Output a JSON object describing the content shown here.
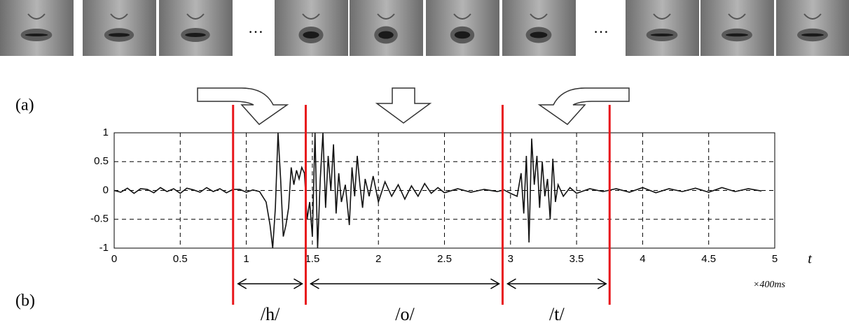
{
  "panel_labels": [
    "(a)",
    "(b)"
  ],
  "ellipsis": [
    "…",
    "…"
  ],
  "chart_data": {
    "type": "line",
    "x_label": "t",
    "x_unit": "×400ms",
    "xlim": [
      0,
      5
    ],
    "ylim": [
      -1,
      1
    ],
    "xticks": [
      0,
      0.5,
      1,
      1.5,
      2,
      2.5,
      3,
      3.5,
      4,
      4.5,
      5
    ],
    "yticks": [
      1,
      0.5,
      0,
      -0.5,
      -1
    ],
    "grid": true,
    "color": "#111111",
    "markers": [
      0.9,
      1.45,
      2.94,
      3.75
    ],
    "marker_color": "#e8161b",
    "phonemes": [
      "/h/",
      "/o/",
      "/t/"
    ],
    "x": [
      0,
      0.05,
      0.1,
      0.15,
      0.2,
      0.25,
      0.3,
      0.35,
      0.4,
      0.45,
      0.5,
      0.55,
      0.6,
      0.65,
      0.7,
      0.75,
      0.8,
      0.85,
      0.9,
      0.95,
      1.0,
      1.05,
      1.1,
      1.15,
      1.18,
      1.2,
      1.22,
      1.24,
      1.26,
      1.28,
      1.3,
      1.32,
      1.34,
      1.36,
      1.38,
      1.4,
      1.42,
      1.44,
      1.46,
      1.48,
      1.5,
      1.52,
      1.54,
      1.56,
      1.58,
      1.6,
      1.62,
      1.64,
      1.66,
      1.68,
      1.7,
      1.72,
      1.75,
      1.78,
      1.8,
      1.82,
      1.84,
      1.86,
      1.88,
      1.9,
      1.93,
      1.96,
      2.0,
      2.05,
      2.1,
      2.15,
      2.2,
      2.25,
      2.3,
      2.35,
      2.4,
      2.45,
      2.5,
      2.6,
      2.7,
      2.8,
      2.9,
      2.95,
      3.0,
      3.05,
      3.08,
      3.1,
      3.12,
      3.14,
      3.16,
      3.18,
      3.2,
      3.22,
      3.24,
      3.26,
      3.28,
      3.3,
      3.32,
      3.34,
      3.36,
      3.4,
      3.45,
      3.5,
      3.6,
      3.7,
      3.8,
      3.9,
      4.0,
      4.1,
      4.2,
      4.3,
      4.4,
      4.5,
      4.6,
      4.7,
      4.8,
      4.9
    ],
    "values": [
      0,
      -0.03,
      0.04,
      -0.05,
      0.03,
      0.02,
      -0.04,
      0.05,
      -0.02,
      0.03,
      -0.05,
      0.04,
      0.01,
      -0.03,
      0.05,
      -0.02,
      0.03,
      -0.04,
      0.02,
      0.02,
      -0.03,
      0.01,
      -0.02,
      -0.2,
      -0.6,
      -1,
      -0.3,
      1,
      0.2,
      -0.8,
      -0.6,
      -0.3,
      0.4,
      0.1,
      0.35,
      0.2,
      0.4,
      0.3,
      -0.5,
      -0.2,
      -0.8,
      1,
      -1,
      0.2,
      1,
      -0.3,
      0.6,
      0,
      0.8,
      -0.4,
      0.3,
      -0.2,
      0.1,
      -0.6,
      0.4,
      -0.1,
      0.6,
      0.1,
      -0.3,
      0.2,
      -0.1,
      0.25,
      -0.2,
      0.15,
      -0.1,
      0.1,
      -0.15,
      0.08,
      -0.1,
      0.12,
      -0.05,
      0.05,
      -0.04,
      0.03,
      -0.03,
      0.02,
      -0.02,
      0.01,
      -0.05,
      -0.1,
      0.3,
      -0.4,
      0.6,
      -0.9,
      0.9,
      0.1,
      0.6,
      -0.3,
      0.5,
      -0.1,
      0.2,
      -0.5,
      0.55,
      -0.2,
      0.1,
      -0.1,
      0.05,
      -0.05,
      0.03,
      -0.02,
      0.03,
      -0.03,
      0.05,
      -0.04,
      0.03,
      -0.02,
      0.04,
      -0.03,
      0.05,
      -0.02,
      0.03,
      -0.01
    ]
  }
}
